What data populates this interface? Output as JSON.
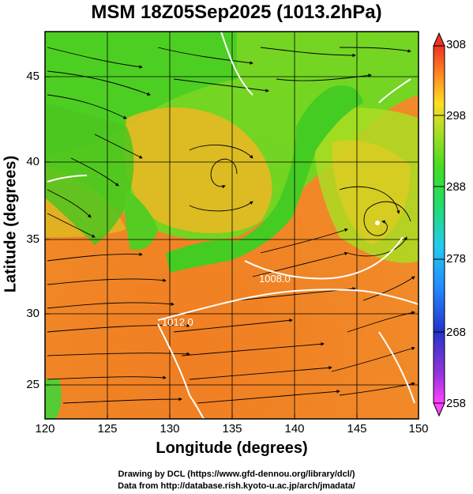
{
  "title": "MSM 18Z05Sep2025 (1013.2hPa)",
  "xlabel": "Longitude (degrees)",
  "ylabel": "Latitude  (degrees)",
  "credits": [
    "Drawing by DCL (https://www.gfd-dennou.org/library/dcl/)",
    "Data from http://database.rish.kyoto-u.ac.jp/arch/jmadata/"
  ],
  "map": {
    "lon_range": [
      120,
      150
    ],
    "lat_range": [
      22.4,
      47.6
    ],
    "lon_ticks": [
      "120",
      "125",
      "130",
      "135",
      "140",
      "145",
      "150"
    ],
    "lat_ticks": [
      "25",
      "30",
      "35",
      "40",
      "45"
    ],
    "contour_labels": [
      "1008.0",
      "1012.0"
    ],
    "low_center": {
      "lon": 146.5,
      "lat": 36
    }
  },
  "colorbar": {
    "min": 258,
    "max": 308,
    "ticks": [
      "308",
      "298",
      "288",
      "278",
      "268",
      "258"
    ],
    "colors": [
      "#ff44ff",
      "#4422dd",
      "#2266ff",
      "#22ccff",
      "#22dd99",
      "#22cc33",
      "#88dd22",
      "#ccdd22",
      "#ffcc22",
      "#ff8822",
      "#ff4400",
      "#ee3300"
    ]
  }
}
